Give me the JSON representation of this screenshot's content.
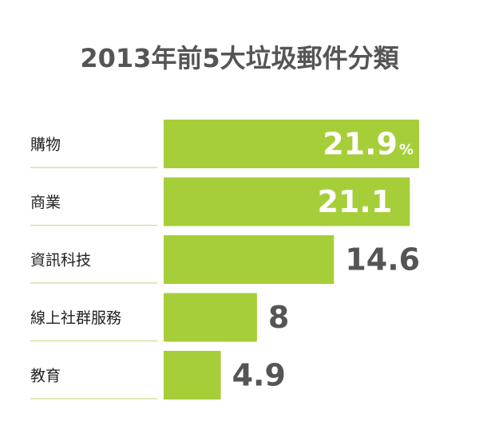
{
  "chart_data": {
    "type": "bar",
    "orientation": "horizontal",
    "title": "2013年前5大垃圾郵件分類",
    "categories": [
      "購物",
      "商業",
      "資訊科技",
      "線上社群服務",
      "教育"
    ],
    "values": [
      21.9,
      21.1,
      14.6,
      8,
      4.9
    ],
    "value_labels": [
      "21.9",
      "21.1",
      "14.6",
      "8",
      "4.9"
    ],
    "unit_label": "%",
    "bar_color": "#a6ce39",
    "separator_color": "#c5df8a",
    "xlim": [
      0,
      21.9
    ],
    "grid": false,
    "legend": "none"
  }
}
